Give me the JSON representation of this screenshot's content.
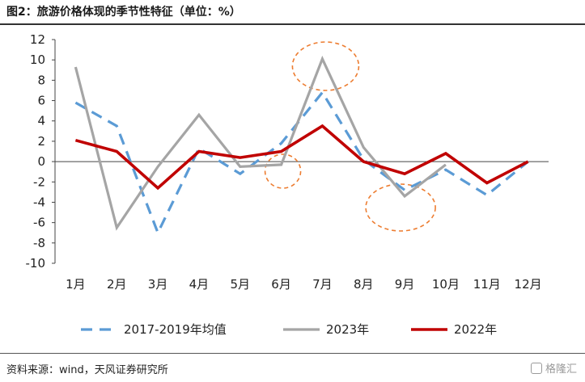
{
  "title": "图2：旅游价格体现的季节性特征（单位：%）",
  "source": "资料来源：wind，天风证券研究所",
  "watermark": "格隆汇",
  "chart_data": {
    "type": "line",
    "title": "图2：旅游价格体现的季节性特征（单位：%）",
    "categories": [
      "1月",
      "2月",
      "3月",
      "4月",
      "5月",
      "6月",
      "7月",
      "8月",
      "9月",
      "10月",
      "11月",
      "12月"
    ],
    "ylim": [
      -10,
      12
    ],
    "yticks": [
      -10,
      -8,
      -6,
      -4,
      -2,
      0,
      2,
      4,
      6,
      8,
      10,
      12
    ],
    "grid": false,
    "legend_position": "bottom",
    "series": [
      {
        "name": "2017-2019年均值",
        "color": "#5b9bd5",
        "style": "dashed",
        "values": [
          5.8,
          3.5,
          -7.0,
          1.3,
          -1.2,
          1.8,
          6.8,
          0.2,
          -2.8,
          -0.8,
          -3.3,
          0.0
        ]
      },
      {
        "name": "2023年",
        "color": "#a5a5a5",
        "style": "solid",
        "values": [
          9.3,
          -6.5,
          -0.5,
          4.6,
          -0.5,
          -0.3,
          10.1,
          1.4,
          -3.4,
          -0.3,
          null,
          null
        ]
      },
      {
        "name": "2022年",
        "color": "#c00000",
        "style": "solid",
        "values": [
          2.1,
          1.0,
          -2.6,
          1.0,
          0.4,
          1.0,
          3.5,
          0.0,
          -1.2,
          0.8,
          -2.1,
          0.0
        ]
      }
    ],
    "annotations": [
      {
        "type": "ellipse",
        "color": "#ed7d31",
        "near": "7月"
      },
      {
        "type": "ellipse",
        "color": "#ed7d31",
        "near": "6月"
      },
      {
        "type": "ellipse",
        "color": "#ed7d31",
        "near": "9月"
      }
    ]
  }
}
